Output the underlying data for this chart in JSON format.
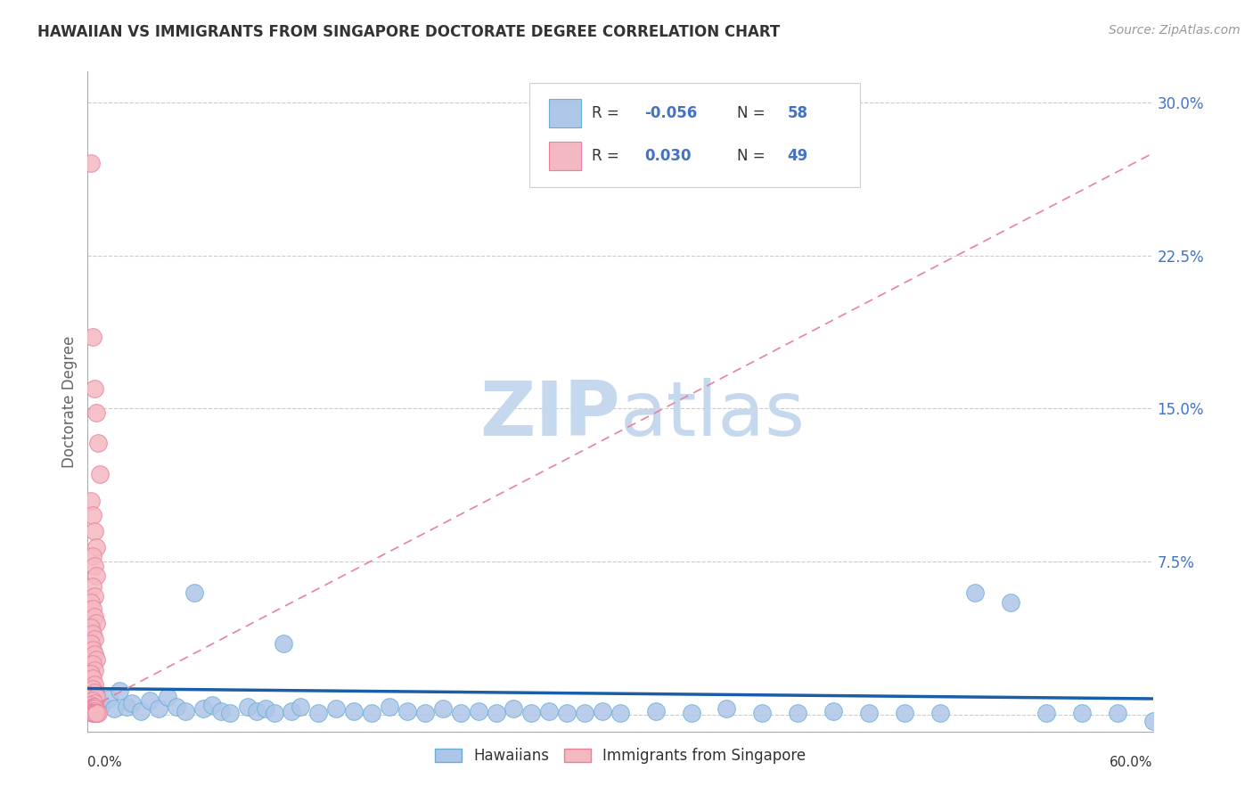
{
  "title": "HAWAIIAN VS IMMIGRANTS FROM SINGAPORE DOCTORATE DEGREE CORRELATION CHART",
  "source": "Source: ZipAtlas.com",
  "ylabel": "Doctorate Degree",
  "yticks": [
    0.0,
    0.075,
    0.15,
    0.225,
    0.3
  ],
  "ytick_labels": [
    "",
    "7.5%",
    "15.0%",
    "22.5%",
    "30.0%"
  ],
  "xlim": [
    0.0,
    0.6
  ],
  "ylim": [
    -0.008,
    0.315
  ],
  "legend_color1": "#aec6e8",
  "legend_color2": "#f4b8c1",
  "trend_color_blue": "#1a5ea8",
  "trend_color_pink": "#e8829a",
  "scatter_color_blue": "#aec6e8",
  "scatter_color_pink": "#f4b8c1",
  "scatter_edge_blue": "#6aaed6",
  "scatter_edge_pink": "#e87fa0",
  "background_color": "#ffffff",
  "grid_color": "#cccccc",
  "title_color": "#333333",
  "axis_label_color": "#4472c4",
  "watermark_color": "#dce8f5",
  "hawaiians_x": [
    0.005,
    0.008,
    0.012,
    0.015,
    0.018,
    0.022,
    0.025,
    0.03,
    0.035,
    0.04,
    0.045,
    0.05,
    0.055,
    0.06,
    0.065,
    0.07,
    0.075,
    0.08,
    0.09,
    0.095,
    0.1,
    0.105,
    0.11,
    0.115,
    0.12,
    0.13,
    0.14,
    0.15,
    0.16,
    0.17,
    0.18,
    0.19,
    0.2,
    0.21,
    0.22,
    0.23,
    0.24,
    0.25,
    0.26,
    0.27,
    0.28,
    0.29,
    0.3,
    0.32,
    0.34,
    0.36,
    0.38,
    0.4,
    0.42,
    0.44,
    0.46,
    0.48,
    0.5,
    0.52,
    0.54,
    0.56,
    0.58,
    0.6
  ],
  "hawaiians_y": [
    0.01,
    0.005,
    0.008,
    0.003,
    0.012,
    0.004,
    0.006,
    0.002,
    0.007,
    0.003,
    0.009,
    0.004,
    0.002,
    0.06,
    0.003,
    0.005,
    0.002,
    0.001,
    0.004,
    0.002,
    0.003,
    0.001,
    0.035,
    0.002,
    0.004,
    0.001,
    0.003,
    0.002,
    0.001,
    0.004,
    0.002,
    0.001,
    0.003,
    0.001,
    0.002,
    0.001,
    0.003,
    0.001,
    0.002,
    0.001,
    0.001,
    0.002,
    0.001,
    0.002,
    0.001,
    0.003,
    0.001,
    0.001,
    0.002,
    0.001,
    0.001,
    0.001,
    0.06,
    0.055,
    0.001,
    0.001,
    0.001,
    -0.003
  ],
  "singapore_x": [
    0.002,
    0.003,
    0.004,
    0.005,
    0.006,
    0.007,
    0.002,
    0.003,
    0.004,
    0.005,
    0.003,
    0.004,
    0.005,
    0.003,
    0.004,
    0.002,
    0.003,
    0.004,
    0.005,
    0.002,
    0.003,
    0.004,
    0.002,
    0.003,
    0.004,
    0.005,
    0.003,
    0.004,
    0.002,
    0.003,
    0.004,
    0.003,
    0.004,
    0.005,
    0.003,
    0.004,
    0.002,
    0.003,
    0.004,
    0.003,
    0.004,
    0.003,
    0.004,
    0.003,
    0.005,
    0.006,
    0.003,
    0.004,
    0.005
  ],
  "singapore_y": [
    0.27,
    0.185,
    0.16,
    0.148,
    0.133,
    0.118,
    0.105,
    0.098,
    0.09,
    0.082,
    0.078,
    0.073,
    0.068,
    0.063,
    0.058,
    0.055,
    0.052,
    0.048,
    0.045,
    0.043,
    0.04,
    0.037,
    0.035,
    0.032,
    0.03,
    0.027,
    0.025,
    0.022,
    0.02,
    0.018,
    0.015,
    0.013,
    0.011,
    0.009,
    0.007,
    0.006,
    0.005,
    0.004,
    0.004,
    0.003,
    0.003,
    0.002,
    0.002,
    0.001,
    0.001,
    0.001,
    0.001,
    0.001,
    0.001
  ],
  "blue_trend_x": [
    0.0,
    0.6
  ],
  "blue_trend_y": [
    0.013,
    0.008
  ],
  "pink_trend_x": [
    0.0,
    0.6
  ],
  "pink_trend_y": [
    0.003,
    0.275
  ]
}
